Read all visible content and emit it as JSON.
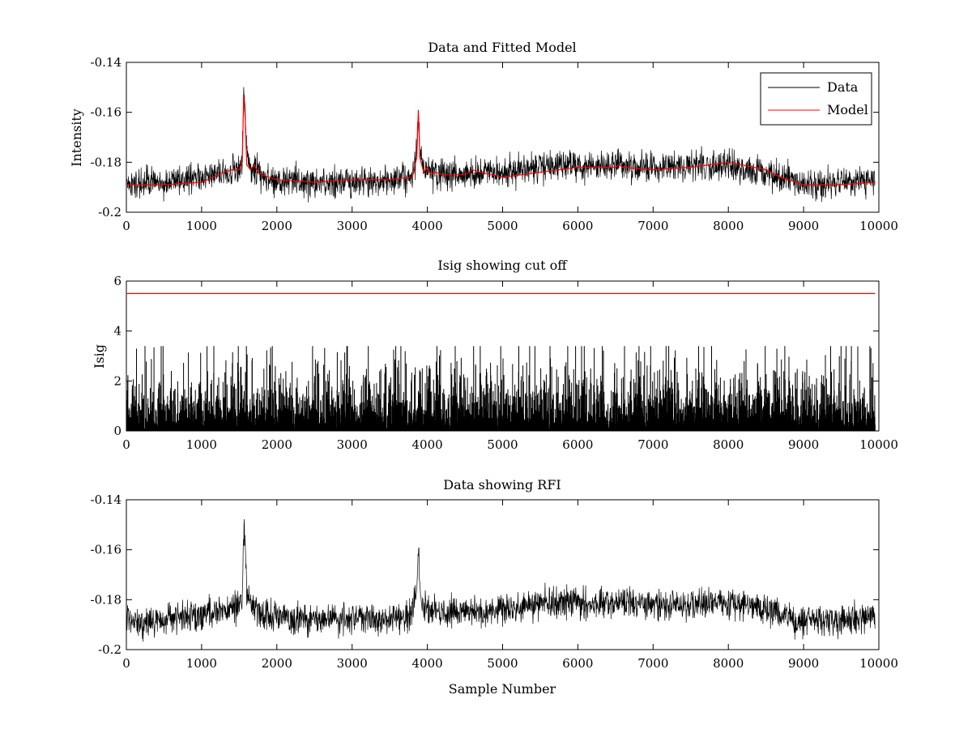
{
  "chart_data": [
    {
      "type": "line",
      "title": "Data and Fitted Model",
      "xlabel": "",
      "ylabel": "Intensity",
      "xlim": [
        0,
        10000
      ],
      "ylim": [
        -0.2,
        -0.14
      ],
      "y_direction": "inverted",
      "xticks": [
        0,
        1000,
        2000,
        3000,
        4000,
        5000,
        6000,
        7000,
        8000,
        9000,
        10000
      ],
      "yticks": [
        -0.14,
        -0.16,
        -0.18,
        -0.2
      ],
      "yticklabels": [
        "-0.14",
        "-0.16",
        "-0.18",
        "-0.2"
      ],
      "grid": false,
      "legend_position": "top-right",
      "series": [
        {
          "name": "Data",
          "color": "#000000",
          "noise_amplitude": 0.006,
          "x": [
            0,
            500,
            1000,
            1300,
            1500,
            1540,
            1560,
            1580,
            1600,
            1650,
            1800,
            2000,
            2500,
            3000,
            3500,
            3800,
            3860,
            3880,
            3900,
            3950,
            4100,
            4500,
            5000,
            5500,
            6000,
            6500,
            7000,
            7500,
            8000,
            8500,
            9000,
            9500,
            9950
          ],
          "values": [
            -0.189,
            -0.188,
            -0.186,
            -0.184,
            -0.183,
            -0.178,
            -0.15,
            -0.158,
            -0.178,
            -0.182,
            -0.186,
            -0.187,
            -0.188,
            -0.188,
            -0.187,
            -0.186,
            -0.176,
            -0.156,
            -0.175,
            -0.183,
            -0.185,
            -0.185,
            -0.184,
            -0.182,
            -0.181,
            -0.181,
            -0.182,
            -0.182,
            -0.181,
            -0.184,
            -0.189,
            -0.188,
            -0.187
          ]
        },
        {
          "name": "Model",
          "color": "#ff0000",
          "x": [
            0,
            500,
            1000,
            1300,
            1400,
            1500,
            1540,
            1560,
            1580,
            1600,
            1650,
            1700,
            1750,
            1800,
            2000,
            2500,
            3000,
            3500,
            3800,
            3860,
            3880,
            3900,
            3950,
            4000,
            4050,
            4100,
            4200,
            4500,
            4600,
            4700,
            5000,
            5500,
            6000,
            6500,
            6550,
            6600,
            7000,
            7500,
            8000,
            8500,
            8700,
            9000,
            9500,
            9950
          ],
          "values": [
            -0.189,
            -0.189,
            -0.188,
            -0.184,
            -0.183,
            -0.183,
            -0.18,
            -0.153,
            -0.163,
            -0.181,
            -0.183,
            -0.181,
            -0.184,
            -0.185,
            -0.187,
            -0.188,
            -0.187,
            -0.187,
            -0.186,
            -0.178,
            -0.159,
            -0.178,
            -0.184,
            -0.182,
            -0.185,
            -0.184,
            -0.185,
            -0.185,
            -0.183,
            -0.184,
            -0.186,
            -0.184,
            -0.182,
            -0.182,
            -0.181,
            -0.182,
            -0.183,
            -0.182,
            -0.18,
            -0.183,
            -0.186,
            -0.189,
            -0.189,
            -0.188
          ]
        }
      ]
    },
    {
      "type": "line",
      "title": "Isig showing cut off",
      "xlabel": "",
      "ylabel": "Isig",
      "xlim": [
        0,
        10000
      ],
      "ylim": [
        0,
        6
      ],
      "xticks": [
        0,
        1000,
        2000,
        3000,
        4000,
        5000,
        6000,
        7000,
        8000,
        9000,
        10000
      ],
      "yticks": [
        0,
        2,
        4,
        6
      ],
      "yticklabels": [
        "0",
        "2",
        "4",
        "6"
      ],
      "grid": false,
      "series": [
        {
          "color": "#000000",
          "noise_amplitude": 0,
          "x": [
            0,
            1000,
            2000,
            3000,
            4000,
            5000,
            6000,
            7000,
            8000,
            9000,
            9950
          ],
          "values": [
            0.8,
            0.8,
            0.8,
            0.8,
            0.8,
            0.8,
            0.8,
            0.8,
            0.8,
            0.8,
            0.8
          ],
          "style": "dense-spikes",
          "spike_max": 3.4
        },
        {
          "color": "#ff0000",
          "x": [
            0,
            9950
          ],
          "values": [
            5.5,
            5.5
          ]
        }
      ]
    },
    {
      "type": "line",
      "title": "Data showing RFI",
      "xlabel": "Sample Number",
      "ylabel": "",
      "xlim": [
        0,
        10000
      ],
      "ylim": [
        -0.2,
        -0.14
      ],
      "y_direction": "inverted",
      "xticks": [
        0,
        1000,
        2000,
        3000,
        4000,
        5000,
        6000,
        7000,
        8000,
        9000,
        10000
      ],
      "yticks": [
        -0.14,
        -0.16,
        -0.18,
        -0.2
      ],
      "yticklabels": [
        "-0.14",
        "-0.16",
        "-0.18",
        "-0.2"
      ],
      "grid": false,
      "series": [
        {
          "color": "#000000",
          "noise_amplitude": 0.006,
          "x": [
            0,
            500,
            1000,
            1300,
            1500,
            1540,
            1560,
            1580,
            1600,
            1650,
            1800,
            2000,
            2500,
            3000,
            3500,
            3800,
            3860,
            3880,
            3900,
            3950,
            4100,
            4500,
            5000,
            5500,
            6000,
            6500,
            7000,
            7500,
            8000,
            8500,
            9000,
            9500,
            9950
          ],
          "values": [
            -0.189,
            -0.188,
            -0.186,
            -0.184,
            -0.183,
            -0.178,
            -0.15,
            -0.158,
            -0.178,
            -0.182,
            -0.186,
            -0.187,
            -0.188,
            -0.188,
            -0.187,
            -0.186,
            -0.176,
            -0.156,
            -0.175,
            -0.183,
            -0.185,
            -0.185,
            -0.184,
            -0.182,
            -0.181,
            -0.181,
            -0.182,
            -0.182,
            -0.181,
            -0.184,
            -0.189,
            -0.188,
            -0.187
          ]
        }
      ]
    }
  ]
}
